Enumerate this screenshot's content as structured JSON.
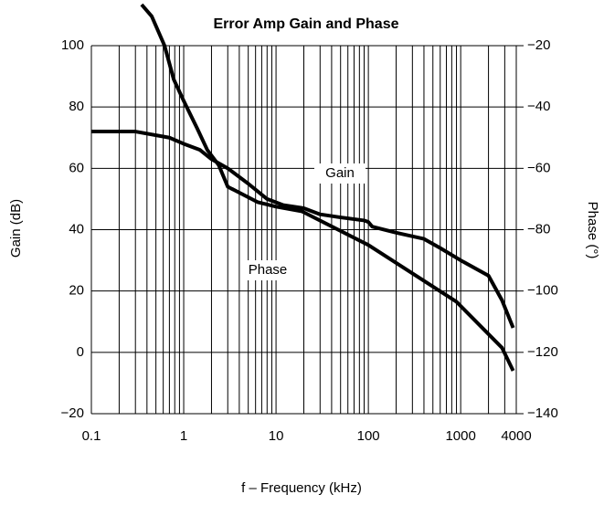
{
  "chart_data": {
    "type": "line",
    "title": "Error Amp Gain and Phase",
    "xlabel": "f – Frequency (kHz)",
    "ylabel": "Gain (dB)",
    "y2label": "Phase (°)",
    "xscale": "log",
    "xlim": [
      0.1,
      4000
    ],
    "xticks": [
      0.1,
      1,
      10,
      100,
      1000,
      4000
    ],
    "xticks_minor": [
      0.2,
      0.3,
      0.4,
      0.5,
      0.6,
      0.7,
      0.8,
      0.9,
      2,
      3,
      4,
      5,
      6,
      7,
      8,
      9,
      20,
      30,
      40,
      50,
      60,
      70,
      80,
      90,
      200,
      300,
      400,
      500,
      600,
      700,
      800,
      900,
      2000,
      3000
    ],
    "ylim": [
      -20,
      100
    ],
    "yticks": [
      {
        "value": -20,
        "label": "−20"
      },
      0,
      20,
      40,
      60,
      80,
      100
    ],
    "y2lim": [
      -140,
      -20
    ],
    "y2ticks": [
      {
        "value": -140,
        "label": "−140"
      },
      {
        "value": -120,
        "label": "−120"
      },
      {
        "value": -100,
        "label": "−100"
      },
      {
        "value": -80,
        "label": "−80"
      },
      {
        "value": -60,
        "label": "−60"
      },
      {
        "value": -40,
        "label": "−40"
      },
      {
        "value": -20,
        "label": "−20"
      }
    ],
    "grid": true,
    "series": [
      {
        "name": "Gain",
        "color": "#000000",
        "x": [
          0.1,
          0.3,
          0.7,
          1,
          1.5,
          2,
          3,
          5,
          8,
          12,
          20,
          30,
          50,
          90,
          100,
          110,
          200,
          400,
          600,
          1000,
          2000,
          2800,
          3700
        ],
        "values": [
          72,
          72,
          70,
          68,
          66,
          63,
          60,
          55,
          50,
          48,
          47,
          45,
          44,
          43,
          42.5,
          41,
          39,
          37,
          34,
          30,
          25,
          17,
          8
        ]
      },
      {
        "name": "Phase",
        "color": "#000000",
        "axis": "y2",
        "x": [
          0.35,
          0.45,
          0.62,
          0.78,
          1,
          1.4,
          1.8,
          2.4,
          3,
          6.3,
          10,
          19,
          100,
          900,
          2800,
          3700
        ],
        "values": [
          -6.6,
          -10.4,
          -20,
          -31,
          -38,
          -47,
          -54,
          -59,
          -66,
          -71,
          -72.5,
          -74,
          -85,
          -103.5,
          -118.5,
          -126
        ]
      }
    ]
  }
}
